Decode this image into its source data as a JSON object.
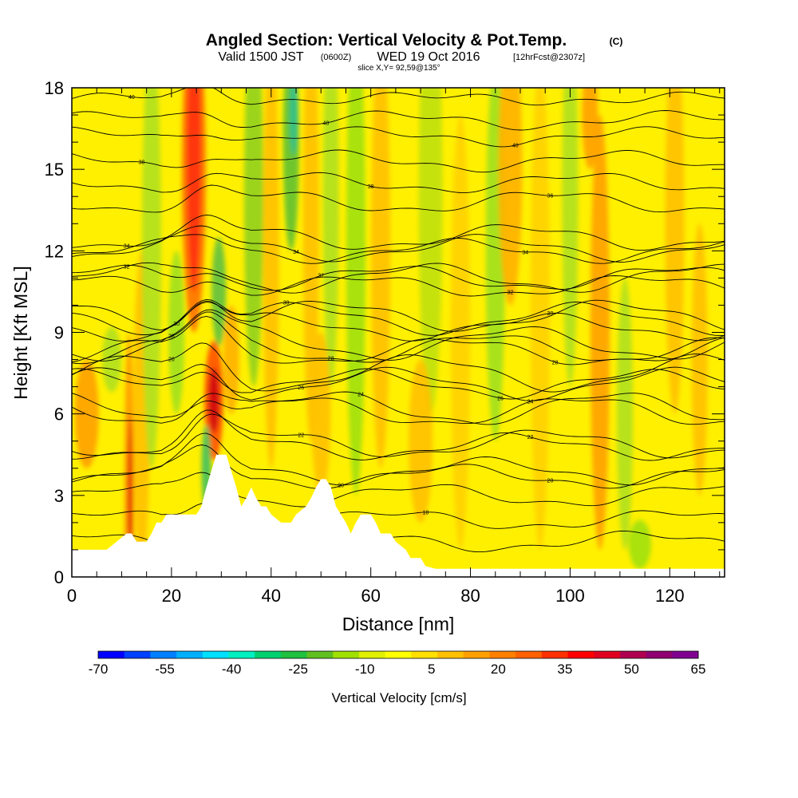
{
  "chart_data": {
    "type": "heatmap",
    "title": "Angled Section: Vertical Velocity & Pot.Temp.",
    "title_unit": "(C)",
    "subtitle_valid": "Valid 1500 JST",
    "subtitle_utc": "(0600Z)",
    "subtitle_date": "WED 19 Oct 2016",
    "subtitle_fcst": "[12hrFcst@2307z]",
    "slice_label": "slice X,Y= 92,59@135°",
    "xlabel": "Distance [nm]",
    "ylabel": "Height [Kft MSL]",
    "xlim": [
      0,
      131
    ],
    "ylim": [
      0,
      18
    ],
    "x_ticks": [
      "0",
      "20",
      "40",
      "60",
      "80",
      "100",
      "120"
    ],
    "y_ticks": [
      "0",
      "3",
      "6",
      "9",
      "12",
      "15",
      "18"
    ],
    "colorbar": {
      "label": "Vertical Velocity [cm/s]",
      "tick_labels": [
        "-70",
        "-55",
        "-40",
        "-25",
        "-10",
        "5",
        "20",
        "35",
        "50",
        "65"
      ],
      "colors": [
        "#0000ff",
        "#0040ff",
        "#0080ff",
        "#00b0ff",
        "#00e0ff",
        "#00f0c0",
        "#00d070",
        "#20c040",
        "#60c020",
        "#a0e000",
        "#e0f000",
        "#ffff00",
        "#ffe000",
        "#ffc000",
        "#ffa000",
        "#ff8000",
        "#ff6000",
        "#ff3000",
        "#ff0000",
        "#e00020",
        "#b00050",
        "#900070",
        "#800090"
      ]
    },
    "terrain": [
      [
        0,
        1
      ],
      [
        3,
        1
      ],
      [
        5,
        1
      ],
      [
        7,
        1
      ],
      [
        9,
        1.3
      ],
      [
        11,
        1.6
      ],
      [
        12,
        1.6
      ],
      [
        13,
        1.3
      ],
      [
        15,
        1.3
      ],
      [
        16,
        1.6
      ],
      [
        17,
        2
      ],
      [
        18,
        2
      ],
      [
        19,
        2.3
      ],
      [
        21,
        2.3
      ],
      [
        23,
        2.3
      ],
      [
        25,
        2.3
      ],
      [
        26,
        2.6
      ],
      [
        27,
        3.3
      ],
      [
        28,
        3.9
      ],
      [
        29,
        4.5
      ],
      [
        31,
        4.5
      ],
      [
        32,
        3.9
      ],
      [
        33,
        3.3
      ],
      [
        34,
        2.6
      ],
      [
        35,
        2.9
      ],
      [
        36,
        3.3
      ],
      [
        37,
        2.9
      ],
      [
        38,
        2.6
      ],
      [
        39,
        2.6
      ],
      [
        40,
        2.3
      ],
      [
        42,
        2
      ],
      [
        44,
        2
      ],
      [
        45,
        2.3
      ],
      [
        47,
        2.6
      ],
      [
        48,
        2.9
      ],
      [
        49,
        3.3
      ],
      [
        50,
        3.6
      ],
      [
        51,
        3.6
      ],
      [
        52,
        3.3
      ],
      [
        53,
        2.6
      ],
      [
        54,
        2.3
      ],
      [
        55,
        2
      ],
      [
        56,
        1.6
      ],
      [
        57,
        2
      ],
      [
        58,
        2.3
      ],
      [
        60,
        2.3
      ],
      [
        61,
        2
      ],
      [
        62,
        1.6
      ],
      [
        64,
        1.6
      ],
      [
        65,
        1.3
      ],
      [
        67,
        1
      ],
      [
        68,
        0.7
      ],
      [
        70,
        0.7
      ],
      [
        71,
        0.4
      ],
      [
        73,
        0.3
      ],
      [
        80,
        0.3
      ],
      [
        100,
        0.3
      ],
      [
        131,
        0.3
      ]
    ],
    "isentropes": [
      {
        "label": "40",
        "base": 17.6,
        "amp": 0.15,
        "label_x": 12
      },
      {
        "label": "40",
        "base": 16.8,
        "amp": 0.25,
        "label_x": 51
      },
      {
        "label": "40",
        "base": 16.2,
        "amp": 0.25,
        "label_x": 89
      },
      {
        "label": "38",
        "base": 15.3,
        "amp": 0.3,
        "label_x": 14
      },
      {
        "label": "38",
        "base": 14.5,
        "amp": 0.3,
        "label_x": 60
      },
      {
        "label": "36",
        "base": 13.8,
        "amp": 0.35,
        "label_x": 96
      },
      {
        "label": "34",
        "base": 12.5,
        "amp": 0.4,
        "label_x": 11
      },
      {
        "label": "34",
        "base": 12.1,
        "amp": 0.4,
        "label_x": 45
      },
      {
        "label": "34",
        "base": 12.0,
        "amp": 0.35,
        "label_x": 91
      },
      {
        "label": "32",
        "base": 11.0,
        "amp": 0.45,
        "label_x": 11
      },
      {
        "label": "32",
        "base": 11.0,
        "amp": 0.4,
        "label_x": 50
      },
      {
        "label": "32",
        "base": 10.7,
        "amp": 0.35,
        "label_x": 88
      },
      {
        "label": "30",
        "base": 9.6,
        "amp": 0.5,
        "label_x": 21
      },
      {
        "label": "30",
        "base": 9.5,
        "amp": 0.5,
        "label_x": 43
      },
      {
        "label": "30",
        "base": 9.2,
        "amp": 0.4,
        "label_x": 96
      },
      {
        "label": "28",
        "base": 8.6,
        "amp": 0.55,
        "label_x": 20
      },
      {
        "label": "28",
        "base": 8.4,
        "amp": 0.5,
        "label_x": 52
      },
      {
        "label": "28",
        "base": 8.3,
        "amp": 0.45,
        "label_x": 97
      },
      {
        "label": "26",
        "base": 7.5,
        "amp": 0.6,
        "label_x": 20
      },
      {
        "label": "26",
        "base": 7.1,
        "amp": 0.5,
        "label_x": 46
      },
      {
        "label": "26",
        "base": 7.1,
        "amp": 0.45,
        "label_x": 86
      },
      {
        "label": "24",
        "base": 6.2,
        "amp": 0.55,
        "label_x": 58
      },
      {
        "label": "24",
        "base": 6.1,
        "amp": 0.5,
        "label_x": 92
      },
      {
        "label": "22",
        "base": 4.9,
        "amp": 0.45,
        "label_x": 46
      },
      {
        "label": "22",
        "base": 4.8,
        "amp": 0.4,
        "label_x": 92
      },
      {
        "label": "20",
        "base": 3.9,
        "amp": 0.4,
        "label_x": 54
      },
      {
        "label": "20",
        "base": 3.7,
        "amp": 0.35,
        "label_x": 96
      },
      {
        "label": "",
        "base": 3.0,
        "amp": 0.35,
        "label_x": 0
      },
      {
        "label": "18",
        "base": 2.1,
        "amp": 0.3,
        "label_x": 71
      },
      {
        "label": "",
        "base": 1.3,
        "amp": 0.3,
        "label_x": 0
      }
    ],
    "grid": false
  }
}
